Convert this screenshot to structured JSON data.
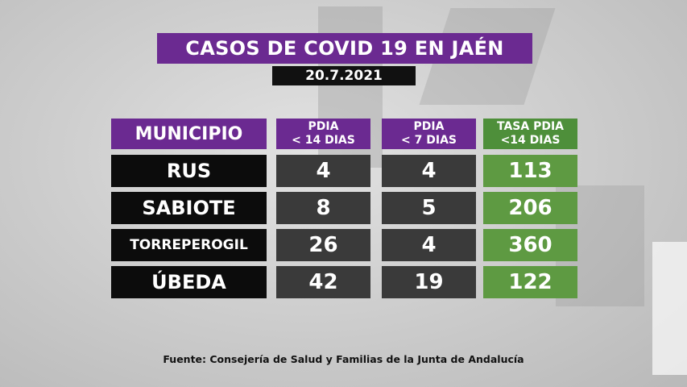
{
  "title": "CASOS DE COVID 19 EN JAÉN",
  "date": "20.7.2021",
  "table": {
    "headers": {
      "municipio": "MUNICIPIO",
      "pdia14_line1": "PDIA",
      "pdia14_line2": "< 14 DIAS",
      "pdia7_line1": "PDIA",
      "pdia7_line2": "< 7 DIAS",
      "tasa_line1": "TASA PDIA",
      "tasa_line2": "<14 DIAS"
    },
    "rows": [
      {
        "municipio": "RUS",
        "pdia14": "4",
        "pdia7": "4",
        "tasa": "113"
      },
      {
        "municipio": "SABIOTE",
        "pdia14": "8",
        "pdia7": "5",
        "tasa": "206"
      },
      {
        "municipio": "TORREPEROGIL",
        "pdia14": "26",
        "pdia7": "4",
        "tasa": "360"
      },
      {
        "municipio": "ÚBEDA",
        "pdia14": "42",
        "pdia7": "19",
        "tasa": "122"
      }
    ]
  },
  "source": "Fuente:  Consejería de Salud y Familias de la Junta de Andalucía",
  "colors": {
    "purple": "#6b2a91",
    "green": "#5e9a42",
    "black": "#0c0c0c",
    "dark_gray": "#3a3a3a"
  }
}
